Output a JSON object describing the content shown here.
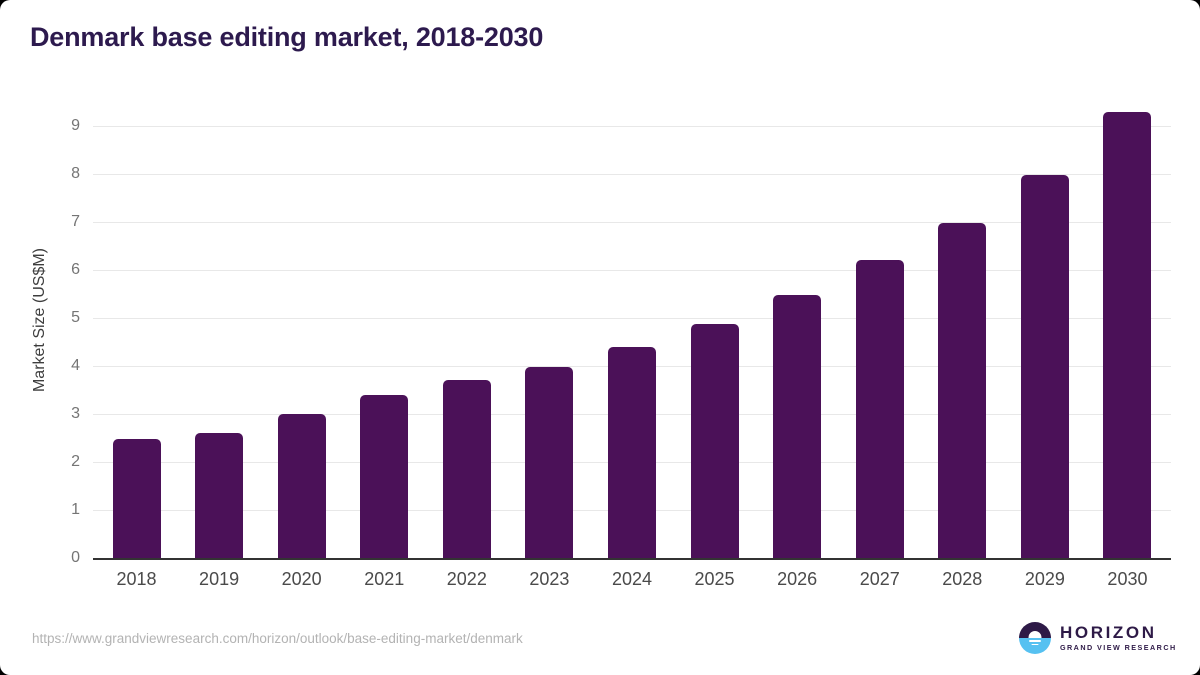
{
  "page": {
    "title": "Denmark base editing market, 2018-2030"
  },
  "chart_data": {
    "type": "bar",
    "title": "Denmark base editing market, 2018-2030",
    "categories": [
      "2018",
      "2019",
      "2020",
      "2021",
      "2022",
      "2023",
      "2024",
      "2025",
      "2026",
      "2027",
      "2028",
      "2029",
      "2030"
    ],
    "values": [
      2.47,
      2.6,
      3.0,
      3.4,
      3.7,
      3.98,
      4.4,
      4.88,
      5.48,
      6.2,
      6.98,
      7.98,
      9.3
    ],
    "xlabel": "",
    "ylabel": "Market Size (US$M)",
    "ylim": [
      0,
      9.5
    ],
    "yticks": [
      0,
      1,
      2,
      3,
      4,
      5,
      6,
      7,
      8,
      9
    ],
    "grid": "horizontal-only",
    "legend": "none",
    "bar_color": "#4B1158"
  },
  "footer": {
    "source_url": "https://www.grandviewresearch.com/horizon/outlook/base-editing-market/denmark",
    "logo": {
      "brand": "HORIZON",
      "tagline": "GRAND VIEW RESEARCH"
    }
  },
  "colors": {
    "title": "#2D1A4E",
    "bar": "#4B1158",
    "gridline": "#E8E8E8",
    "axis_line": "#333333",
    "y_tick_text": "#757575",
    "x_tick_text": "#4A4A4A",
    "url_text": "#B3B3B3",
    "logo_dark": "#2E1A47",
    "logo_blue": "#56C1F1",
    "background": "#FFFFFF"
  }
}
